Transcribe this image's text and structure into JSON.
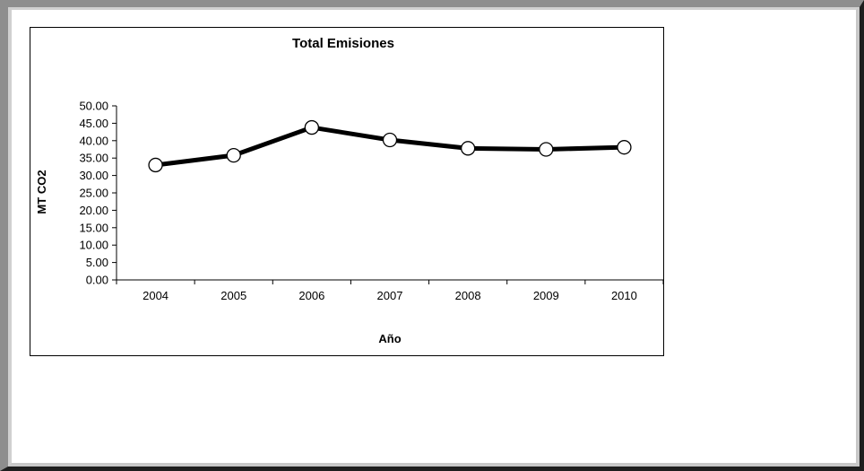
{
  "chart_data": {
    "type": "line",
    "title": "Total Emisiones",
    "xlabel": "Año",
    "ylabel": "MT CO2",
    "categories": [
      "2004",
      "2005",
      "2006",
      "2007",
      "2008",
      "2009",
      "2010"
    ],
    "series": [
      {
        "values": [
          33.0,
          35.8,
          43.8,
          40.2,
          37.8,
          37.5,
          38.1
        ]
      }
    ],
    "ylim": [
      0,
      50
    ],
    "yticks": [
      "0.00",
      "5.00",
      "10.00",
      "15.00",
      "20.00",
      "25.00",
      "30.00",
      "35.00",
      "40.00",
      "45.00",
      "50.00"
    ],
    "grid": false,
    "legend": "none",
    "line_color": "#000000",
    "marker_fill": "#ffffff"
  }
}
